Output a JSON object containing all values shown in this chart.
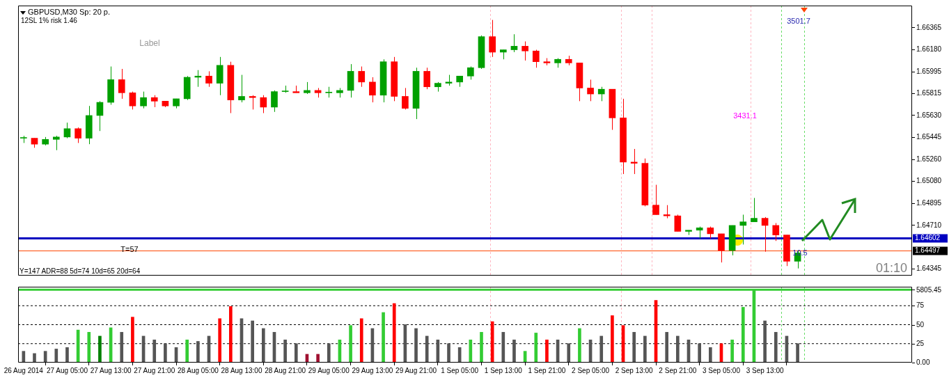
{
  "chart_data": [
    {
      "type": "candlestick",
      "title": "GBPUSD,M30 Sp: 20 p.",
      "subtitle": "12SL 1% risk 1.46",
      "categories": [
        null,
        null,
        null,
        null,
        null,
        null,
        null,
        null,
        null,
        null,
        null,
        null,
        null,
        null,
        null,
        null,
        null,
        null,
        null,
        null,
        null,
        null,
        null,
        null,
        null,
        null,
        null,
        null,
        null,
        null,
        null,
        null,
        null,
        null,
        null,
        null,
        null,
        null,
        null,
        null,
        null,
        null,
        null,
        null,
        null,
        null,
        null,
        null,
        null,
        null,
        null,
        null,
        null,
        null,
        null,
        null,
        null,
        null,
        null,
        null,
        null,
        null,
        null,
        null,
        null,
        null,
        null,
        null,
        null,
        null,
        null,
        null,
        null,
        null,
        null,
        null,
        null,
        null,
        null,
        null,
        null,
        null
      ],
      "ohlc": [
        [
          1.6544,
          1.6546,
          1.654,
          1.6544
        ],
        [
          1.6544,
          1.6544,
          1.6536,
          1.6539
        ],
        [
          1.6539,
          1.6545,
          1.6538,
          1.6543
        ],
        [
          1.6543,
          1.6546,
          1.6534,
          1.6545
        ],
        [
          1.6545,
          1.6557,
          1.6544,
          1.6552
        ],
        [
          1.6552,
          1.6553,
          1.654,
          1.6544
        ],
        [
          1.6544,
          1.6571,
          1.6539,
          1.6563
        ],
        [
          1.6563,
          1.6575,
          1.655,
          1.6574
        ],
        [
          1.6574,
          1.6604,
          1.6572,
          1.6593
        ],
        [
          1.6593,
          1.6602,
          1.6577,
          1.6582
        ],
        [
          1.6582,
          1.6583,
          1.6568,
          1.6571
        ],
        [
          1.6571,
          1.6583,
          1.6569,
          1.6578
        ],
        [
          1.6578,
          1.658,
          1.657,
          1.6575
        ],
        [
          1.6575,
          1.6575,
          1.657,
          1.6571
        ],
        [
          1.6571,
          1.6577,
          1.6569,
          1.6577
        ],
        [
          1.6577,
          1.6596,
          1.6576,
          1.6595
        ],
        [
          1.6595,
          1.6601,
          1.6587,
          1.6596
        ],
        [
          1.6596,
          1.66,
          1.6587,
          1.659
        ],
        [
          1.659,
          1.6612,
          1.658,
          1.6605
        ],
        [
          1.6605,
          1.6608,
          1.6565,
          1.6576
        ],
        [
          1.6576,
          1.6597,
          1.6574,
          1.6579
        ],
        [
          1.6579,
          1.658,
          1.6568,
          1.6578
        ],
        [
          1.6578,
          1.658,
          1.6565,
          1.657
        ],
        [
          1.657,
          1.6584,
          1.6566,
          1.6583
        ],
        [
          1.6583,
          1.6588,
          1.6582,
          1.6583
        ],
        [
          1.6583,
          1.6588,
          1.6582,
          1.6582
        ],
        [
          1.6582,
          1.6591,
          1.6581,
          1.6584
        ],
        [
          1.6584,
          1.6586,
          1.6578,
          1.6582
        ],
        [
          1.6582,
          1.6587,
          1.6578,
          1.6582
        ],
        [
          1.6582,
          1.6586,
          1.6578,
          1.6584
        ],
        [
          1.6584,
          1.6606,
          1.6578,
          1.66
        ],
        [
          1.66,
          1.6604,
          1.6587,
          1.6591
        ],
        [
          1.6591,
          1.6595,
          1.6574,
          1.658
        ],
        [
          1.658,
          1.661,
          1.6574,
          1.6608
        ],
        [
          1.6608,
          1.6612,
          1.6575,
          1.6579
        ],
        [
          1.6579,
          1.6586,
          1.6568,
          1.6569
        ],
        [
          1.6569,
          1.6603,
          1.656,
          1.66
        ],
        [
          1.66,
          1.6603,
          1.6585,
          1.6587
        ],
        [
          1.6587,
          1.6591,
          1.6583,
          1.659
        ],
        [
          1.659,
          1.6597,
          1.6588,
          1.6591
        ],
        [
          1.6591,
          1.6596,
          1.6587,
          1.6596
        ],
        [
          1.6596,
          1.6604,
          1.6593,
          1.6603
        ],
        [
          1.6603,
          1.663,
          1.6602,
          1.6629
        ],
        [
          1.6629,
          1.6643,
          1.6612,
          1.6616
        ],
        [
          1.6616,
          1.6618,
          1.661,
          1.6618
        ],
        [
          1.6618,
          1.6631,
          1.6616,
          1.6621
        ],
        [
          1.6621,
          1.6625,
          1.6609,
          1.6617
        ],
        [
          1.6617,
          1.6618,
          1.6603,
          1.6608
        ],
        [
          1.6608,
          1.6611,
          1.6605,
          1.6607
        ],
        [
          1.6607,
          1.6611,
          1.6603,
          1.661
        ],
        [
          1.661,
          1.6613,
          1.6605,
          1.6607
        ],
        [
          1.6607,
          1.6607,
          1.6575,
          1.6586
        ],
        [
          1.6586,
          1.6593,
          1.6575,
          1.6581
        ],
        [
          1.6581,
          1.6587,
          1.6575,
          1.6585
        ],
        [
          1.6585,
          1.6585,
          1.6551,
          1.6561
        ],
        [
          1.6561,
          1.6577,
          1.6514,
          1.6524
        ],
        [
          1.6524,
          1.6535,
          1.6514,
          1.6523
        ],
        [
          1.6523,
          1.6527,
          1.6487,
          1.6488
        ],
        [
          1.6488,
          1.6505,
          1.648,
          1.648
        ],
        [
          1.648,
          1.6488,
          1.6477,
          1.6479
        ],
        [
          1.6479,
          1.648,
          1.6466,
          1.6466
        ],
        [
          1.6466,
          1.6467,
          1.6463,
          1.6467
        ],
        [
          1.6467,
          1.647,
          1.646,
          1.6469
        ],
        [
          1.6469,
          1.647,
          1.646,
          1.6464
        ],
        [
          1.6464,
          1.6464,
          1.644,
          1.645
        ],
        [
          1.645,
          1.6471,
          1.6446,
          1.6471
        ],
        [
          1.6471,
          1.648,
          1.6455,
          1.6474
        ],
        [
          1.6474,
          1.6494,
          1.6474,
          1.6477
        ],
        [
          1.6477,
          1.6478,
          1.6449,
          1.6471
        ],
        [
          1.6471,
          1.6473,
          1.6458,
          1.6463
        ],
        [
          1.6463,
          1.6463,
          1.6437,
          1.6441
        ],
        [
          1.6441,
          1.645,
          1.6435,
          1.6448
        ],
        null,
        null,
        null,
        null,
        null,
        null,
        null,
        null,
        null,
        null
      ],
      "colors": [
        "#00a000",
        "#ff0000",
        "#00a000",
        "#00a000",
        "#00a000",
        "#ff0000",
        "#00a000",
        "#00a000",
        "#00a000",
        "#ff0000",
        "#ff0000",
        "#00a000",
        "#ff0000",
        "#ff0000",
        "#00a000",
        "#00a000",
        "#00a000",
        "#ff0000",
        "#00a000",
        "#ff0000",
        "#00a000",
        "#ff0000",
        "#ff0000",
        "#00a000",
        "#00a000",
        "#ff0000",
        "#00a000",
        "#ff0000",
        "#00a000",
        "#00a000",
        "#00a000",
        "#ff0000",
        "#ff0000",
        "#00a000",
        "#ff0000",
        "#ff0000",
        "#00a000",
        "#ff0000",
        "#00a000",
        "#00a000",
        "#00a000",
        "#00a000",
        "#00a000",
        "#ff0000",
        "#00a000",
        "#00a000",
        "#ff0000",
        "#ff0000",
        "#ff0000",
        "#00a000",
        "#ff0000",
        "#ff0000",
        "#ff0000",
        "#00a000",
        "#ff0000",
        "#ff0000",
        "#ff0000",
        "#ff0000",
        "#ff0000",
        "#ff0000",
        "#ff0000",
        "#00a000",
        "#00a000",
        "#ff0000",
        "#ff0000",
        "#00a000",
        "#00a000",
        "#00a000",
        "#ff0000",
        "#ff0000",
        "#ff0000",
        "#00a000",
        null,
        null,
        null,
        null,
        null,
        null,
        null,
        null,
        null,
        null
      ],
      "ylim": [
        1.6429,
        1.6655
      ],
      "yticks": [
        {
          "value": 1.64345,
          "label": "1.64345"
        },
        {
          "value": 1.6471,
          "label": "1.64710"
        },
        {
          "value": 1.64895,
          "label": "1.64895"
        },
        {
          "value": 1.6508,
          "label": "1.65080"
        },
        {
          "value": 1.6526,
          "label": "1.65260"
        },
        {
          "value": 1.65445,
          "label": "1.65445"
        },
        {
          "value": 1.6563,
          "label": "1.65630"
        },
        {
          "value": 1.65815,
          "label": "1.65815"
        },
        {
          "value": 1.65995,
          "label": "1.65995"
        },
        {
          "value": 1.6618,
          "label": "1.66180"
        },
        {
          "value": 1.66365,
          "label": "1.66365"
        }
      ],
      "tick_labels": "y",
      "ref_lines": [
        {
          "axis": "y",
          "value": 1.64602,
          "label": "1.64602",
          "color": "#0000c0"
        },
        {
          "axis": "y",
          "value": 1.64497,
          "label": "1.64497",
          "color": "#ff4500"
        }
      ],
      "annotations": [
        "Label",
        "T=57",
        "3431.1",
        "3501.7",
        "10.5",
        "Y=147 ADR=88 5d=74 10d=65 20d=64",
        "01:10"
      ]
    },
    {
      "type": "bar",
      "categories": [
        "26 Aug 2014",
        null,
        null,
        null,
        "27 Aug 05:00",
        null,
        null,
        null,
        "27 Aug 13:00",
        null,
        null,
        null,
        "27 Aug 21:00",
        null,
        null,
        null,
        "28 Aug 05:00",
        null,
        null,
        null,
        "28 Aug 13:00",
        null,
        null,
        null,
        "28 Aug 21:00",
        null,
        null,
        null,
        "29 Aug 05:00",
        null,
        null,
        null,
        "29 Aug 13:00",
        null,
        null,
        null,
        "29 Aug 21:00",
        null,
        null,
        null,
        "1 Sep 05:00",
        null,
        null,
        null,
        "1 Sep 13:00",
        null,
        null,
        null,
        "1 Sep 21:00",
        null,
        null,
        null,
        "2 Sep 05:00",
        null,
        null,
        null,
        "2 Sep 13:00",
        null,
        null,
        null,
        "2 Sep 21:00",
        null,
        null,
        null,
        "3 Sep 05:00",
        null,
        null,
        null,
        "3 Sep 13:00",
        null,
        null,
        null,
        null,
        null,
        null,
        null,
        null,
        null,
        null,
        null,
        null,
        null
      ],
      "values": [
        910,
        730,
        910,
        1090,
        1210,
        2610,
        2430,
        2120,
        2790,
        2430,
        3640,
        2120,
        1820,
        1520,
        1210,
        1820,
        1700,
        2120,
        3520,
        4490,
        3520,
        3340,
        2730,
        2430,
        1820,
        1520,
        670,
        670,
        1520,
        1820,
        2970,
        3520,
        2730,
        4010,
        4730,
        3040,
        2730,
        2120,
        1820,
        1520,
        1210,
        1820,
        2430,
        3280,
        2430,
        1820,
        910,
        2370,
        1820,
        1820,
        1520,
        2730,
        1820,
        2120,
        3760,
        2970,
        2430,
        2120,
        4980,
        2430,
        2120,
        1820,
        1520,
        1210,
        1520,
        1820,
        4430,
        5800,
        3340,
        2430,
        2120,
        1520,
        null,
        null,
        null,
        null,
        null,
        null,
        null,
        null,
        null,
        null
      ],
      "colors": [
        "#555555",
        "#555555",
        "#555555",
        "#555555",
        "#555555",
        "#33cc33",
        "#33cc33",
        "#008000",
        "#33cc33",
        "#555555",
        "#ff0000",
        "#555555",
        "#555555",
        "#555555",
        "#555555",
        "#33cc33",
        "#555555",
        "#555555",
        "#ff0000",
        "#ff0000",
        "#555555",
        "#555555",
        "#555555",
        "#555555",
        "#555555",
        "#555555",
        "#a01030",
        "#a01030",
        "#555555",
        "#33cc33",
        "#33cc33",
        "#ff0000",
        "#555555",
        "#33cc33",
        "#ff0000",
        "#555555",
        "#555555",
        "#555555",
        "#555555",
        "#555555",
        "#555555",
        "#33cc33",
        "#33cc33",
        "#ff0000",
        "#555555",
        "#555555",
        "#33cc33",
        "#33cc33",
        "#ff0000",
        "#555555",
        "#555555",
        "#33cc33",
        "#555555",
        "#555555",
        "#ff0000",
        "#ff0000",
        "#555555",
        "#555555",
        "#ff0000",
        "#555555",
        "#555555",
        "#555555",
        "#555555",
        "#555555",
        "#ff0000",
        "#33cc33",
        "#33cc33",
        "#33cc33",
        "#555555",
        "#555555",
        "#555555",
        "#555555",
        null,
        null,
        null,
        null,
        null,
        null,
        null,
        null,
        null,
        null
      ],
      "ylim": [
        0,
        6070
      ],
      "yticks": [
        {
          "value": 0,
          "label": "0.00"
        },
        {
          "value": 5805.45,
          "label": "5805.45"
        }
      ],
      "y2lim": [
        0,
        100
      ],
      "y2ticks": [
        25,
        50,
        75
      ],
      "ref_lines": [
        {
          "axis": "y2",
          "value": 25,
          "color": "#000000",
          "line_style": "dashed"
        },
        {
          "axis": "y2",
          "value": 50,
          "color": "#000000",
          "line_style": "dashed"
        },
        {
          "axis": "y2",
          "value": 75,
          "color": "#000000",
          "line_style": "dashed"
        },
        {
          "axis": "y2",
          "value": 96,
          "color": "#33cc33"
        }
      ]
    }
  ]
}
